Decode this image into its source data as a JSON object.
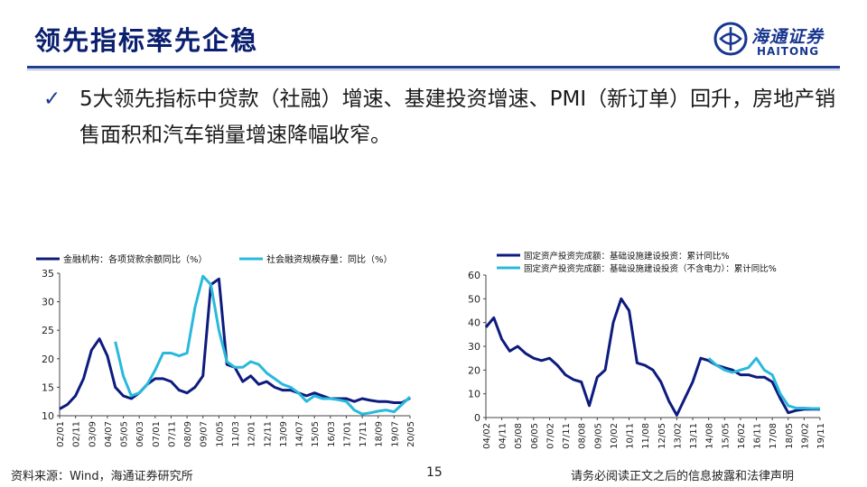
{
  "slide": {
    "title": "领先指标率先企稳",
    "bullet_text": "5大领先指标中贷款（社融）增速、基建投资增速、PMI（新订单）回升，房地产销售面积和汽车销量增速降幅收窄。",
    "page_number": "15",
    "source": "资料来源：Wind，海通证券研究所",
    "disclaimer": "请务必阅读正文之后的信息披露和法律声明"
  },
  "logo": {
    "cn": "海通证券",
    "en": "HAITONG"
  },
  "colors": {
    "navy": "#0d1b7e",
    "cyan": "#29b9dc",
    "title": "#0a1f6f",
    "rule": "#1f3c8f"
  },
  "chart_data": [
    {
      "type": "line",
      "title": "",
      "xlabel": "",
      "ylabel": "",
      "ylim": [
        10,
        35
      ],
      "yticks": [
        10,
        15,
        20,
        25,
        30,
        35
      ],
      "xticks": [
        "02/01",
        "02/11",
        "03/09",
        "04/07",
        "05/05",
        "06/03",
        "07/01",
        "07/11",
        "08/09",
        "09/07",
        "10/05",
        "11/03",
        "12/01",
        "12/11",
        "13/09",
        "14/07",
        "15/05",
        "16/03",
        "17/01",
        "17/11",
        "18/09",
        "19/07",
        "20/05"
      ],
      "legend": "top",
      "series": [
        {
          "name": "金融机构：各项贷款余额同比（%）",
          "color": "#0d1b7e",
          "x": [
            0,
            0.5,
            1,
            1.5,
            2,
            2.5,
            3,
            3.5,
            4,
            4.5,
            5,
            5.5,
            6,
            6.5,
            7,
            7.5,
            8,
            8.5,
            9,
            9.5,
            10,
            10.5,
            11,
            11.5,
            12,
            12.5,
            13,
            13.5,
            14,
            14.5,
            15,
            15.5,
            16,
            16.5,
            17,
            17.5,
            18,
            18.5,
            19,
            19.5,
            20,
            20.5,
            21,
            21.5,
            22
          ],
          "y": [
            11.2,
            12.0,
            13.5,
            16.5,
            21.5,
            23.5,
            20.5,
            15.0,
            13.5,
            13.0,
            14.0,
            15.5,
            16.5,
            16.5,
            16.0,
            14.5,
            14.0,
            15.0,
            17.0,
            33.0,
            34.0,
            19.0,
            18.5,
            16.0,
            17.0,
            15.5,
            16.0,
            15.0,
            14.5,
            14.5,
            14.0,
            13.5,
            14.0,
            13.5,
            13.0,
            13.0,
            13.0,
            12.5,
            13.0,
            12.7,
            12.5,
            12.5,
            12.3,
            12.3,
            13.1
          ]
        },
        {
          "name": "社会融资规模存量：同比（%）",
          "color": "#29b9dc",
          "x": [
            3.5,
            4,
            4.5,
            5,
            5.5,
            6,
            6.5,
            7,
            7.5,
            8,
            8.5,
            9,
            9.5,
            10,
            10.5,
            11,
            11.5,
            12,
            12.5,
            13,
            13.5,
            14,
            14.5,
            15,
            15.5,
            16,
            16.5,
            17,
            17.5,
            18,
            18.5,
            19,
            19.5,
            20,
            20.5,
            21,
            21.5,
            22
          ],
          "y": [
            23.0,
            17.0,
            13.5,
            14.0,
            15.5,
            18.0,
            21.0,
            21.0,
            20.5,
            21.0,
            29.0,
            34.5,
            33.0,
            25.0,
            19.5,
            18.5,
            18.5,
            19.5,
            19.0,
            17.5,
            16.5,
            15.5,
            15.0,
            14.0,
            12.5,
            13.5,
            13.0,
            13.0,
            12.8,
            12.5,
            11.0,
            10.3,
            10.5,
            10.8,
            11.0,
            10.7,
            12.0,
            13.3
          ]
        }
      ]
    },
    {
      "type": "line",
      "title": "",
      "xlabel": "",
      "ylabel": "",
      "ylim": [
        0,
        60
      ],
      "yticks": [
        0,
        10,
        20,
        30,
        40,
        50,
        60
      ],
      "xticks": [
        "04/02",
        "04/11",
        "05/08",
        "06/05",
        "07/02",
        "07/11",
        "08/08",
        "09/05",
        "10/02",
        "10/11",
        "11/08",
        "12/05",
        "13/02",
        "13/11",
        "14/08",
        "15/05",
        "16/02",
        "16/11",
        "17/08",
        "18/05",
        "19/02",
        "19/11"
      ],
      "legend": "top",
      "series": [
        {
          "name": "固定资产投资完成额：基础设施建设投资：累计同比%",
          "color": "#0d1b7e",
          "x": [
            0,
            0.5,
            1,
            1.5,
            2,
            2.5,
            3,
            3.5,
            4,
            4.5,
            5,
            5.5,
            6,
            6.5,
            7,
            7.5,
            8,
            8.5,
            9,
            9.5,
            10,
            10.5,
            11,
            11.5,
            12,
            12.5,
            13,
            13.5,
            14,
            14.5,
            15,
            15.5,
            16,
            16.5,
            17,
            17.5,
            18,
            18.5,
            19,
            19.5,
            20,
            20.5,
            21
          ],
          "y": [
            38,
            42,
            33,
            28,
            30,
            27,
            25,
            24,
            25,
            22,
            18,
            16,
            15,
            5,
            17,
            20,
            40,
            50,
            45,
            23,
            22,
            20,
            15,
            7,
            1,
            8,
            15,
            25,
            24,
            22,
            21,
            20,
            18,
            18,
            17,
            17,
            15,
            8,
            2,
            3,
            3.5,
            3.5,
            3.5
          ]
        },
        {
          "name": "固定资产投资完成额：基础设施建设投资（不含电力）：累计同比%",
          "color": "#29b9dc",
          "x": [
            14,
            14.5,
            15,
            15.5,
            16,
            16.5,
            17,
            17.5,
            18,
            18.5,
            19,
            19.5,
            20,
            20.5,
            21
          ],
          "y": [
            25,
            22,
            20,
            19,
            20,
            21,
            25,
            20,
            18,
            10,
            5,
            4,
            4,
            3.8,
            3.8
          ]
        }
      ]
    }
  ]
}
